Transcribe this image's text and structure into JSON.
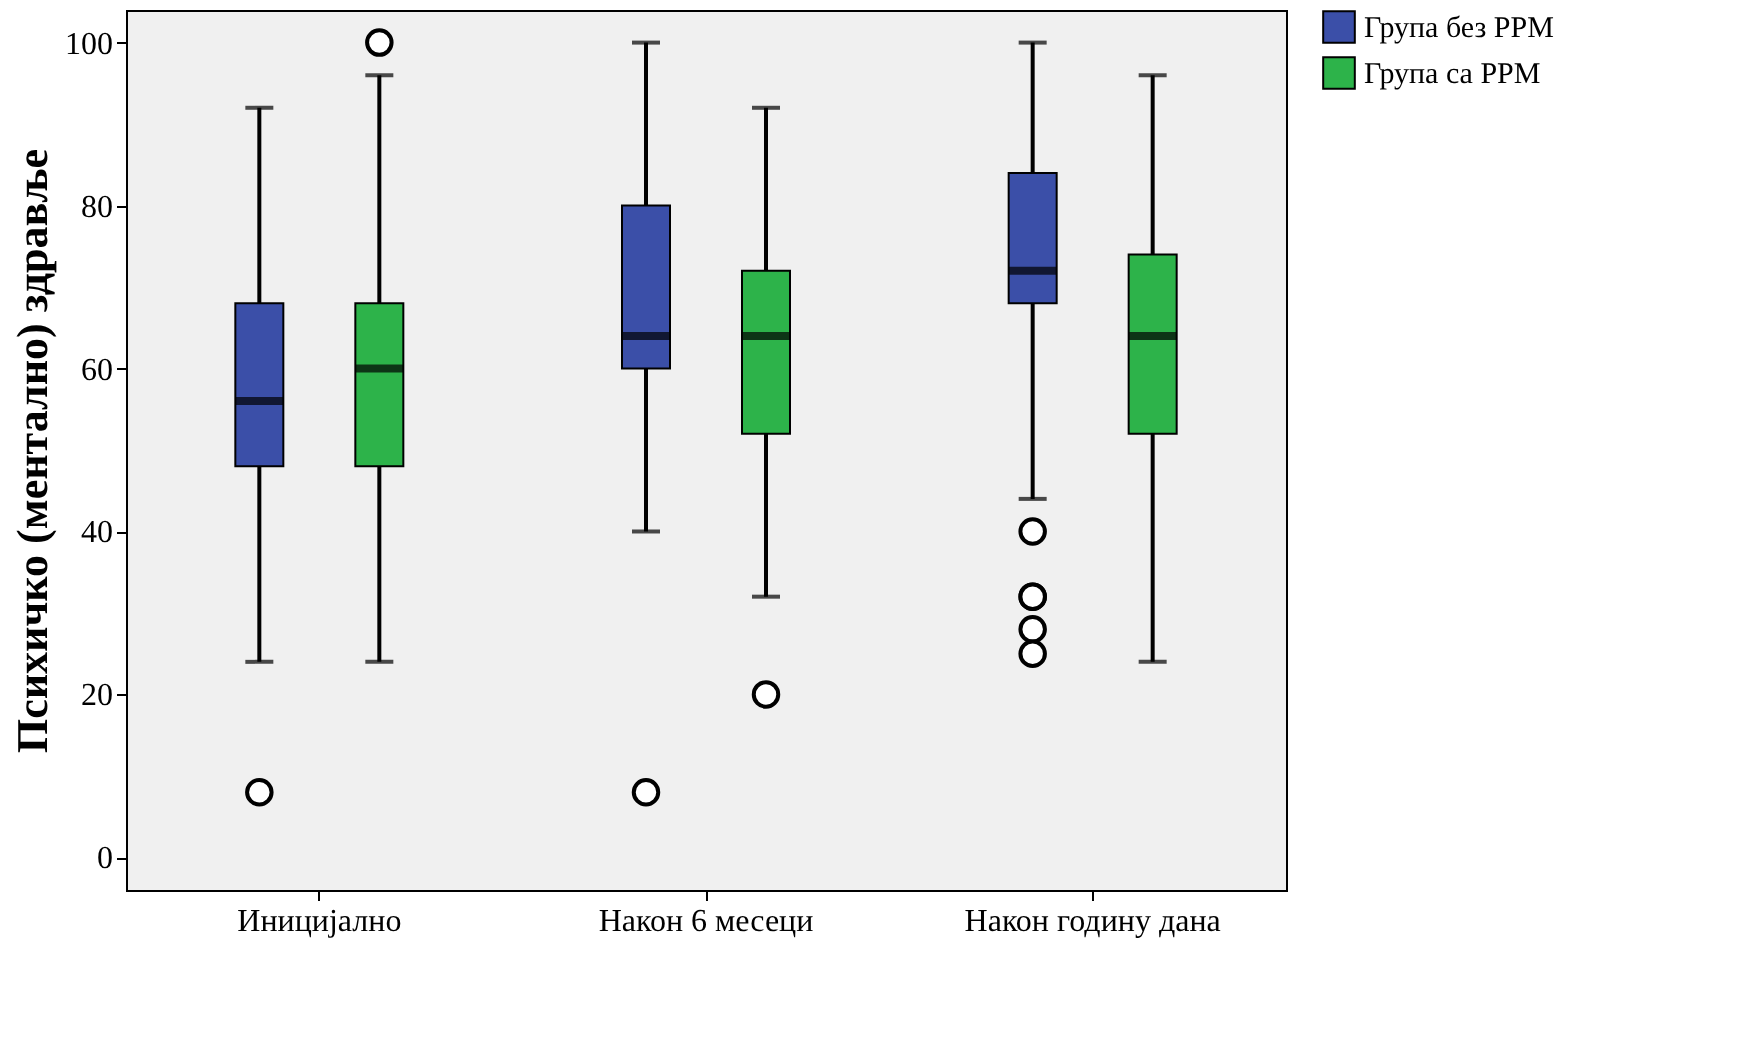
{
  "chart_data": {
    "type": "box",
    "ylabel": "Психичко (ментално) здравље",
    "categories": [
      "Иницијално",
      "Након 6 месеци",
      "Након годину дана"
    ],
    "ylim": [
      -4,
      104
    ],
    "yticks": [
      0,
      20,
      40,
      60,
      80,
      100
    ],
    "grid": false,
    "legend": "top right",
    "series": [
      {
        "name": "Група без РРМ",
        "color": "#3b4fa8",
        "boxes": [
          {
            "low": 24,
            "q1": 48,
            "median": 56,
            "q3": 68,
            "high": 92,
            "outliers": [
              8
            ]
          },
          {
            "low": 40,
            "q1": 60,
            "median": 64,
            "q3": 80,
            "high": 100,
            "outliers": [
              8
            ]
          },
          {
            "low": 44,
            "q1": 68,
            "median": 72,
            "q3": 84,
            "high": 100,
            "outliers": [
              40,
              32,
              32,
              28,
              25
            ]
          }
        ]
      },
      {
        "name": "Група са РРМ",
        "color": "#2db34a",
        "boxes": [
          {
            "low": 24,
            "q1": 48,
            "median": 60,
            "q3": 68,
            "high": 96,
            "outliers": [
              100
            ]
          },
          {
            "low": 32,
            "q1": 52,
            "median": 64,
            "q3": 72,
            "high": 92,
            "outliers": [
              20
            ]
          },
          {
            "low": 24,
            "q1": 52,
            "median": 64,
            "q3": 74,
            "high": 96
          }
        ]
      }
    ]
  }
}
